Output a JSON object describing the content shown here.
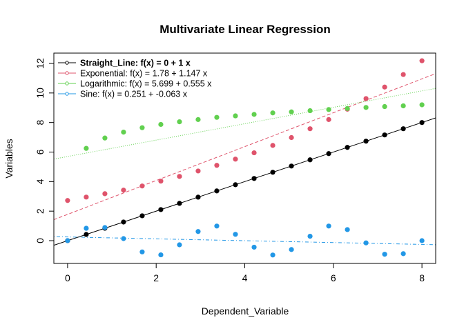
{
  "chart_data": {
    "type": "scatter",
    "title": "Multivariate Linear Regression",
    "xlabel": "Dependent_Variable",
    "ylabel": "Variables",
    "xlim": [
      -0.31,
      8.31
    ],
    "ylim": [
      -1.54,
      12.7
    ],
    "xticks": [
      0,
      2,
      4,
      6,
      8
    ],
    "yticks": [
      0,
      2,
      4,
      6,
      8,
      10,
      12
    ],
    "grid": false,
    "legend_position": "top-left",
    "x": [
      0,
      0.421,
      0.842,
      1.263,
      1.684,
      2.105,
      2.526,
      2.947,
      3.368,
      3.789,
      4.211,
      4.632,
      5.053,
      5.474,
      5.895,
      6.316,
      6.737,
      7.158,
      7.579,
      8
    ],
    "series": [
      {
        "name": "Straight_Line",
        "legend": "Straight_Line:  f(x) = 0 + 1 x",
        "color": "#000000",
        "line_style": "solid",
        "fit": [
          0,
          1
        ],
        "values": [
          0,
          0.421,
          0.842,
          1.263,
          1.684,
          2.105,
          2.526,
          2.947,
          3.368,
          3.789,
          4.211,
          4.632,
          5.053,
          5.474,
          5.895,
          6.316,
          6.737,
          7.158,
          7.579,
          8
        ]
      },
      {
        "name": "Exponential",
        "legend": "Exponential:  f(x) = 1.78 + 1.147 x",
        "color": "#DF536B",
        "line_style": "dashed",
        "fit": [
          1.78,
          1.147
        ],
        "values": [
          2.72,
          2.95,
          3.18,
          3.42,
          3.7,
          4.03,
          4.35,
          4.72,
          5.1,
          5.52,
          5.95,
          6.45,
          6.98,
          7.58,
          8.2,
          8.9,
          9.62,
          10.4,
          11.25,
          12.18
        ]
      },
      {
        "name": "Logarithmic",
        "legend": "Logarithmic:  f(x) = 5.699 + 0.555 x",
        "color": "#61D04F",
        "line_style": "dotted",
        "fit": [
          5.699,
          0.555
        ],
        "values": [
          null,
          6.25,
          6.95,
          7.35,
          7.65,
          7.87,
          8.05,
          8.2,
          8.35,
          8.45,
          8.55,
          8.65,
          8.72,
          8.8,
          8.88,
          8.95,
          9.02,
          9.08,
          9.13,
          9.2
        ]
      },
      {
        "name": "Sine",
        "legend": "Sine:  f(x) = 0.251 + -0.063 x",
        "color": "#2297E6",
        "line_style": "dotdash",
        "fit": [
          0.251,
          -0.063
        ],
        "values": [
          0,
          0.84,
          0.89,
          0.14,
          -0.76,
          -0.96,
          -0.28,
          0.62,
          0.99,
          0.43,
          -0.44,
          -0.97,
          -0.6,
          0.3,
          0.99,
          0.75,
          -0.15,
          -0.92,
          -0.88,
          0
        ]
      }
    ]
  }
}
